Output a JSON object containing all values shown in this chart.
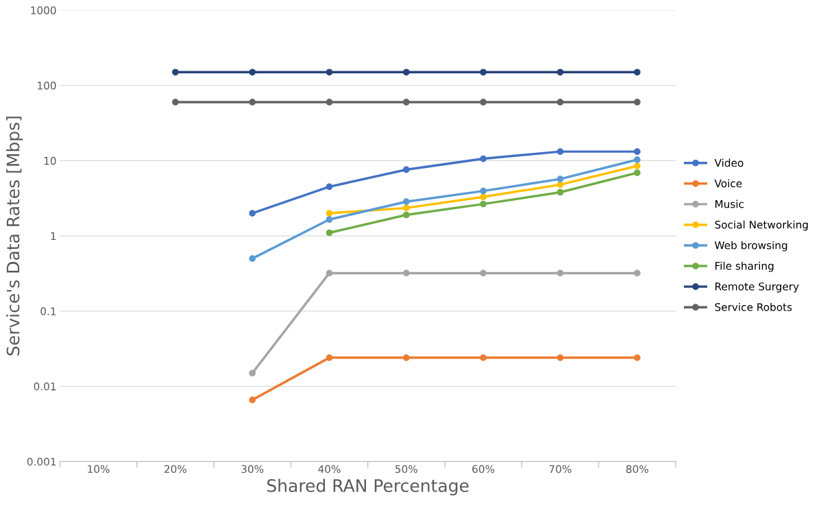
{
  "chart_data": {
    "type": "line",
    "xlabel": "Shared RAN Percentage",
    "ylabel": "Service's Data Rates [Mbps]",
    "categories": [
      "10%",
      "20%",
      "30%",
      "40%",
      "50%",
      "60%",
      "70%",
      "80%"
    ],
    "log": "y",
    "ylim": [
      0.001,
      1000
    ],
    "yticks": [
      0.001,
      0.01,
      0.1,
      1,
      10,
      100,
      1000
    ],
    "grid": "y",
    "legend": "right",
    "marker": "circle",
    "line_style": "solid",
    "series": [
      {
        "name": "Video",
        "color": "#4472c4",
        "values": [
          null,
          null,
          2.0,
          4.5,
          7.6,
          10.6,
          13.2,
          13.2
        ]
      },
      {
        "name": "Voice",
        "color": "#ed7d31",
        "values": [
          null,
          null,
          0.0066,
          0.024,
          0.024,
          0.024,
          0.024,
          0.024
        ]
      },
      {
        "name": "Music",
        "color": "#a5a5a5",
        "values": [
          null,
          null,
          0.015,
          0.32,
          0.32,
          0.32,
          0.32,
          0.32
        ]
      },
      {
        "name": "Social Networking",
        "color": "#ffc000",
        "values": [
          null,
          null,
          null,
          2.0,
          2.35,
          3.3,
          4.8,
          8.5
        ]
      },
      {
        "name": "Web browsing",
        "color": "#5b9bd5",
        "values": [
          null,
          null,
          0.5,
          1.65,
          2.85,
          3.95,
          5.7,
          10.3
        ]
      },
      {
        "name": "File sharing",
        "color": "#70ad47",
        "values": [
          null,
          null,
          null,
          1.1,
          1.9,
          2.65,
          3.8,
          6.9
        ]
      },
      {
        "name": "Remote Surgery",
        "color": "#264478",
        "values": [
          null,
          150,
          150,
          150,
          150,
          150,
          150,
          150
        ]
      },
      {
        "name": "Service Robots",
        "color": "#636363",
        "values": [
          null,
          60,
          60,
          60,
          60,
          60,
          60,
          60
        ]
      }
    ]
  }
}
